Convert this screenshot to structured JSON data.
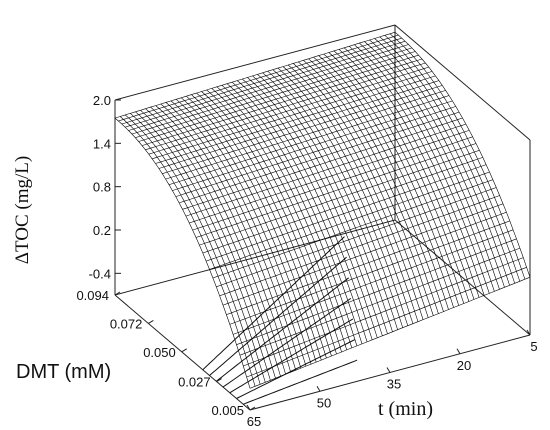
{
  "chart_data": {
    "type": "surface",
    "title": "",
    "zlabel": "ΔTOC (mg/L)",
    "ylabel": "DMT (mM)",
    "xlabel": "t (min)",
    "z_ticks": [
      "2.0",
      "1.4",
      "0.8",
      "0.2",
      "-0.4"
    ],
    "z_tick_values": [
      2.0,
      1.4,
      0.8,
      0.2,
      -0.4
    ],
    "zlim": [
      -0.7,
      2.0
    ],
    "y_ticks": [
      "0.094",
      "0.072",
      "0.050",
      "0.027",
      "0.005"
    ],
    "y_tick_values": [
      0.094,
      0.072,
      0.05,
      0.027,
      0.005
    ],
    "ylim": [
      0.005,
      0.094
    ],
    "x_ticks": [
      "65",
      "50",
      "35",
      "20",
      "5"
    ],
    "x_tick_values": [
      65,
      50,
      35,
      20,
      5
    ],
    "xlim": [
      5,
      65
    ],
    "surface_samples": [
      {
        "t": 5,
        "DMT": 0.094,
        "dTOC": 1.9
      },
      {
        "t": 65,
        "DMT": 0.094,
        "dTOC": 1.75
      },
      {
        "t": 5,
        "DMT": 0.005,
        "dTOC": 0.1
      },
      {
        "t": 65,
        "DMT": 0.005,
        "dTOC": -0.4
      }
    ],
    "contour_projection": true,
    "grid": false,
    "legend": "none"
  }
}
